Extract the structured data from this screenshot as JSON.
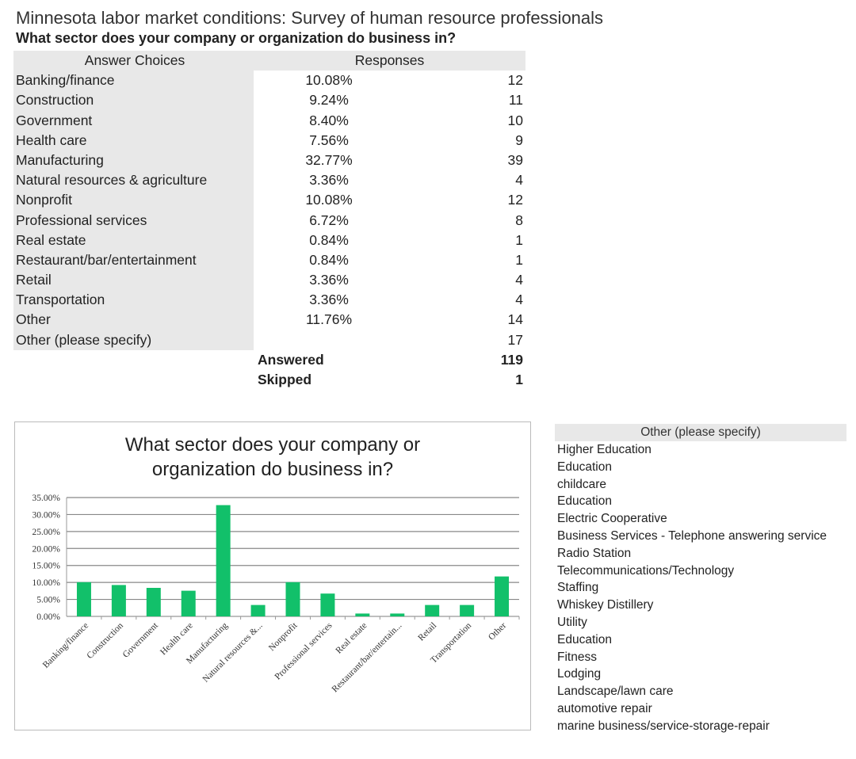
{
  "header": {
    "title": "Minnesota labor market conditions: Survey of human resource professionals",
    "question": "What sector does your company or organization do business in?"
  },
  "table": {
    "col_answer": "Answer Choices",
    "col_responses": "Responses",
    "rows": [
      {
        "label": "Banking/finance",
        "pct": "10.08%",
        "count": "12"
      },
      {
        "label": "Construction",
        "pct": "9.24%",
        "count": "11"
      },
      {
        "label": "Government",
        "pct": "8.40%",
        "count": "10"
      },
      {
        "label": "Health care",
        "pct": "7.56%",
        "count": "9"
      },
      {
        "label": "Manufacturing",
        "pct": "32.77%",
        "count": "39"
      },
      {
        "label": "Natural resources & agriculture",
        "pct": "3.36%",
        "count": "4"
      },
      {
        "label": "Nonprofit",
        "pct": "10.08%",
        "count": "12"
      },
      {
        "label": "Professional services",
        "pct": "6.72%",
        "count": "8"
      },
      {
        "label": "Real estate",
        "pct": "0.84%",
        "count": "1"
      },
      {
        "label": "Restaurant/bar/entertainment",
        "pct": "0.84%",
        "count": "1"
      },
      {
        "label": "Retail",
        "pct": "3.36%",
        "count": "4"
      },
      {
        "label": "Transportation",
        "pct": "3.36%",
        "count": "4"
      },
      {
        "label": "Other",
        "pct": "11.76%",
        "count": "14"
      },
      {
        "label": "Other (please specify)",
        "pct": "",
        "count": "17"
      }
    ],
    "answered_label": "Answered",
    "answered": "119",
    "skipped_label": "Skipped",
    "skipped": "1"
  },
  "chart_data": {
    "type": "bar",
    "title": "What sector does your company or organization do business in?",
    "categories": [
      "Banking/finance",
      "Construction",
      "Government",
      "Health care",
      "Manufacturing",
      "Natural resources &...",
      "Nonprofit",
      "Professional services",
      "Real estate",
      "Restaurant/bar/entertain...",
      "Retail",
      "Transportation",
      "Other"
    ],
    "values": [
      10.08,
      9.24,
      8.4,
      7.56,
      32.77,
      3.36,
      10.08,
      6.72,
      0.84,
      0.84,
      3.36,
      3.36,
      11.76
    ],
    "yticks": [
      "0.00%",
      "5.00%",
      "10.00%",
      "15.00%",
      "20.00%",
      "25.00%",
      "30.00%",
      "35.00%"
    ],
    "ylim": [
      0,
      35
    ],
    "xlabel": "",
    "ylabel": "",
    "grid": true,
    "bar_color": "#12c06a"
  },
  "other_specify": {
    "header": "Other (please specify)",
    "items": [
      "Higher Education",
      "Education",
      "childcare",
      "Education",
      "Electric Cooperative",
      "Business Services - Telephone answering service",
      "Radio Station",
      "Telecommunications/Technology",
      "Staffing",
      "Whiskey Distillery",
      "Utility",
      "Education",
      "Fitness",
      "Lodging",
      "Landscape/lawn care",
      "automotive repair",
      "marine business/service-storage-repair"
    ]
  }
}
